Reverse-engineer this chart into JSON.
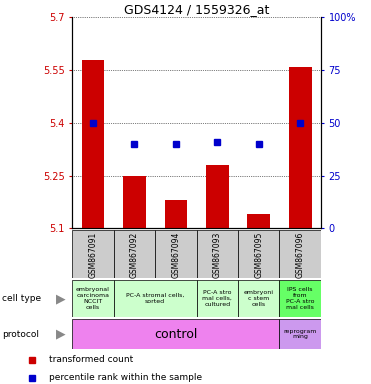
{
  "title": "GDS4124 / 1559326_at",
  "samples": [
    "GSM867091",
    "GSM867092",
    "GSM867094",
    "GSM867093",
    "GSM867095",
    "GSM867096"
  ],
  "red_values": [
    5.58,
    5.25,
    5.18,
    5.28,
    5.14,
    5.56
  ],
  "blue_values": [
    50,
    40,
    40,
    41,
    40,
    50
  ],
  "ylim_left": [
    5.1,
    5.7
  ],
  "ylim_right": [
    0,
    100
  ],
  "yticks_left": [
    5.1,
    5.25,
    5.4,
    5.55,
    5.7
  ],
  "yticks_right": [
    0,
    25,
    50,
    75,
    100
  ],
  "ytick_labels_left": [
    "5.1",
    "5.25",
    "5.4",
    "5.55",
    "5.7"
  ],
  "ytick_labels_right": [
    "0",
    "25",
    "50",
    "75",
    "100%"
  ],
  "cell_types": [
    {
      "label": "embryonal\ncarcinoma\nNCCIT\ncells",
      "span": [
        0,
        1
      ],
      "color": "#ccffcc"
    },
    {
      "label": "PC-A stromal cells,\nsorted",
      "span": [
        1,
        3
      ],
      "color": "#ccffcc"
    },
    {
      "label": "PC-A stro\nmal cells,\ncultured",
      "span": [
        3,
        4
      ],
      "color": "#ccffcc"
    },
    {
      "label": "embryoni\nc stem\ncells",
      "span": [
        4,
        5
      ],
      "color": "#ccffcc"
    },
    {
      "label": "IPS cells\nfrom\nPC-A stro\nmal cells",
      "span": [
        5,
        6
      ],
      "color": "#66ff66"
    }
  ],
  "protocol_control": {
    "label": "control",
    "span": [
      0,
      5
    ],
    "color": "#ee82ee"
  },
  "protocol_reprog": {
    "label": "reprogram\nming",
    "span": [
      5,
      6
    ],
    "color": "#cc99ee"
  },
  "bar_color": "#cc0000",
  "dot_color": "#0000cc",
  "bg_plot": "#ffffff",
  "bg_sample_row": "#cccccc",
  "left_axis_color": "#cc0000",
  "right_axis_color": "#0000cc"
}
